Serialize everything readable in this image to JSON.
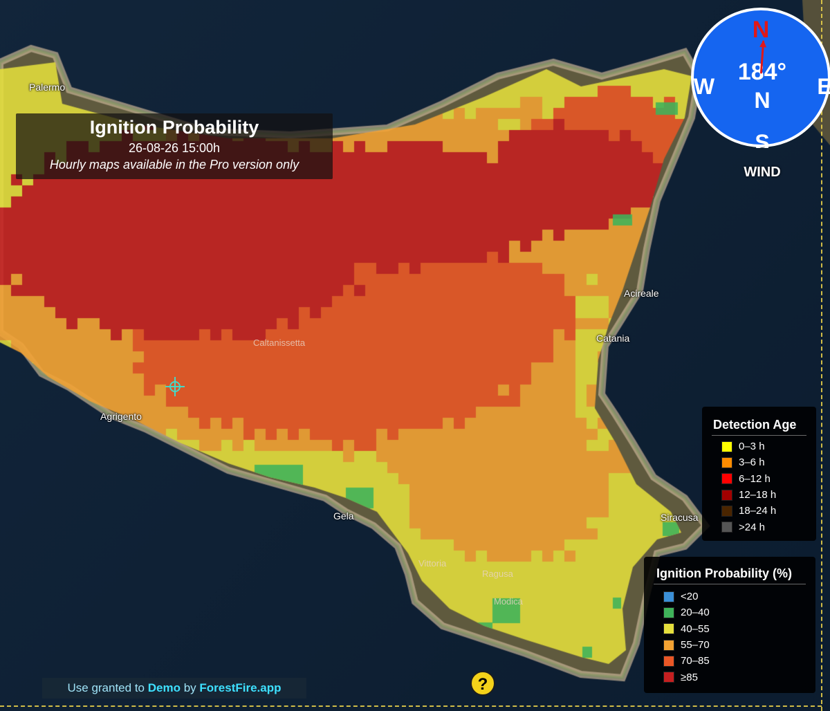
{
  "header": {
    "title": "Ignition Probability",
    "datetime": "26-08-26 15:00h",
    "subtitle": "Hourly maps available in the Pro version only"
  },
  "wind": {
    "direction_text": "184°",
    "direction_degrees": 184,
    "label": "WIND",
    "cardinals": {
      "north": "N",
      "south": "S",
      "east": "E",
      "west": "W"
    },
    "center_letter": "N"
  },
  "cities": {
    "palermo": "Palermo",
    "acireale": "Acireale",
    "catania": "Catania",
    "caltanissetta": "Caltanissetta",
    "agrigento": "Agrigento",
    "gela": "Gela",
    "siracusa": "Siracusa",
    "vittoria": "Vittoria",
    "ragusa": "Ragusa",
    "modica": "Modica"
  },
  "detection_legend": {
    "title": "Detection Age",
    "items": [
      {
        "label": "0–3 h",
        "color": "#ffff00"
      },
      {
        "label": "3–6 h",
        "color": "#ff8c00"
      },
      {
        "label": "6–12 h",
        "color": "#ff0000"
      },
      {
        "label": "12–18 h",
        "color": "#a30000"
      },
      {
        "label": "18–24 h",
        "color": "#4a2500"
      },
      {
        "label": ">24 h",
        "color": "#555555"
      }
    ]
  },
  "ignition_legend": {
    "title": "Ignition Probability (%)",
    "items": [
      {
        "label": "<20",
        "color": "#3b8fd6"
      },
      {
        "label": "20–40",
        "color": "#3fb35a"
      },
      {
        "label": "40–55",
        "color": "#e4de3c"
      },
      {
        "label": "55–70",
        "color": "#f3a233"
      },
      {
        "label": "70–85",
        "color": "#ea5726"
      },
      {
        "label": "≥85",
        "color": "#c51f20"
      }
    ]
  },
  "credit": {
    "prefix": "Use granted to",
    "user": "Demo",
    "mid": "by",
    "brand": "ForestFire.app"
  },
  "help": {
    "label": "?"
  },
  "colors": {
    "sea": "#0f2135",
    "land": "#5f5a3e",
    "p20_40": "#3fb35a",
    "p40_55": "#e4de3c",
    "p55_70": "#f3a233",
    "p70_85": "#ea5726",
    "p85": "#c51f20",
    "compass_face": "#1565f0",
    "needle": "#e01818"
  }
}
